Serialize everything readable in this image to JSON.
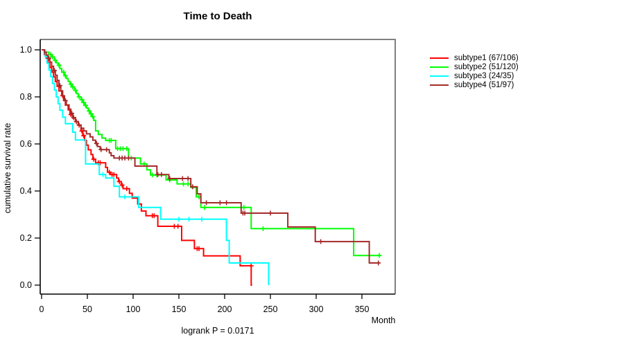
{
  "chart_data": {
    "type": "line",
    "subtype": "kaplan-meier-step",
    "title": "Time to Death",
    "xlabel": "Month",
    "ylabel": "cumulative survival rate",
    "annotation": "logrank P = 0.0171",
    "logrank_p": "0.0171",
    "xlim": [
      0,
      386
    ],
    "ylim": [
      0,
      1.0
    ],
    "grid": false,
    "legend_position": "right-outside",
    "frame_color": "#808080",
    "axis_color": "#000000",
    "x_ticks": [
      0,
      50,
      100,
      150,
      200,
      250,
      300,
      350
    ],
    "y_ticks": [
      {
        "value": 0.0,
        "label": "0.0"
      },
      {
        "value": 0.2,
        "label": "0.2"
      },
      {
        "value": 0.4,
        "label": "0.4"
      },
      {
        "value": 0.6,
        "label": "0.6"
      },
      {
        "value": 0.8,
        "label": "0.8"
      },
      {
        "value": 1.0,
        "label": "1.0"
      }
    ],
    "series": [
      {
        "name": "subtype1",
        "legend_label": "subtype1 (67/106)",
        "events": 67,
        "n": 106,
        "color": "#FF0000",
        "points": [
          [
            0,
            1.0
          ],
          [
            3,
            0.98
          ],
          [
            5,
            0.965
          ],
          [
            7,
            0.945
          ],
          [
            9,
            0.925
          ],
          [
            11,
            0.905
          ],
          [
            13,
            0.885
          ],
          [
            15,
            0.865
          ],
          [
            17,
            0.845
          ],
          [
            19,
            0.825
          ],
          [
            22,
            0.805
          ],
          [
            24,
            0.785
          ],
          [
            26,
            0.765
          ],
          [
            29,
            0.745
          ],
          [
            31,
            0.725
          ],
          [
            34,
            0.71
          ],
          [
            37,
            0.695
          ],
          [
            40,
            0.68
          ],
          [
            43,
            0.655
          ],
          [
            45,
            0.635
          ],
          [
            47,
            0.615
          ],
          [
            49,
            0.595
          ],
          [
            51,
            0.575
          ],
          [
            54,
            0.555
          ],
          [
            56,
            0.535
          ],
          [
            59,
            0.52
          ],
          [
            70,
            0.5
          ],
          [
            72,
            0.48
          ],
          [
            75,
            0.47
          ],
          [
            82,
            0.455
          ],
          [
            84,
            0.44
          ],
          [
            87,
            0.425
          ],
          [
            89,
            0.41
          ],
          [
            96,
            0.39
          ],
          [
            99,
            0.37
          ],
          [
            105,
            0.345
          ],
          [
            109,
            0.315
          ],
          [
            114,
            0.295
          ],
          [
            127,
            0.25
          ],
          [
            153,
            0.19
          ],
          [
            167,
            0.155
          ],
          [
            177,
            0.124
          ],
          [
            217,
            0.082
          ],
          [
            229,
            0.0
          ],
          [
            230,
            0.0
          ]
        ],
        "censors": [
          [
            23,
            0.805
          ],
          [
            32,
            0.725
          ],
          [
            41,
            0.68
          ],
          [
            44,
            0.655
          ],
          [
            46,
            0.635
          ],
          [
            57,
            0.535
          ],
          [
            62,
            0.52
          ],
          [
            64,
            0.52
          ],
          [
            74,
            0.48
          ],
          [
            77,
            0.47
          ],
          [
            79,
            0.47
          ],
          [
            85,
            0.44
          ],
          [
            88,
            0.425
          ],
          [
            93,
            0.41
          ],
          [
            121,
            0.295
          ],
          [
            123,
            0.295
          ],
          [
            145,
            0.25
          ],
          [
            149,
            0.25
          ],
          [
            170,
            0.155
          ],
          [
            172,
            0.155
          ],
          [
            229,
            0.082
          ]
        ]
      },
      {
        "name": "subtype2",
        "legend_label": "subtype2 (51/120)",
        "events": 51,
        "n": 120,
        "color": "#00FF00",
        "points": [
          [
            0,
            1.0
          ],
          [
            4,
            0.99
          ],
          [
            8,
            0.98
          ],
          [
            11,
            0.97
          ],
          [
            14,
            0.955
          ],
          [
            16,
            0.945
          ],
          [
            18,
            0.935
          ],
          [
            20,
            0.92
          ],
          [
            22,
            0.905
          ],
          [
            25,
            0.89
          ],
          [
            27,
            0.878
          ],
          [
            29,
            0.866
          ],
          [
            31,
            0.854
          ],
          [
            33,
            0.842
          ],
          [
            36,
            0.828
          ],
          [
            38,
            0.814
          ],
          [
            40,
            0.8
          ],
          [
            43,
            0.788
          ],
          [
            45,
            0.776
          ],
          [
            47,
            0.764
          ],
          [
            49,
            0.752
          ],
          [
            51,
            0.74
          ],
          [
            53,
            0.728
          ],
          [
            55,
            0.716
          ],
          [
            57,
            0.7
          ],
          [
            59,
            0.655
          ],
          [
            62,
            0.64
          ],
          [
            66,
            0.625
          ],
          [
            70,
            0.615
          ],
          [
            81,
            0.58
          ],
          [
            95,
            0.54
          ],
          [
            108,
            0.515
          ],
          [
            115,
            0.49
          ],
          [
            119,
            0.468
          ],
          [
            136,
            0.447
          ],
          [
            148,
            0.43
          ],
          [
            163,
            0.415
          ],
          [
            169,
            0.375
          ],
          [
            174,
            0.33
          ],
          [
            229,
            0.24
          ],
          [
            341,
            0.126
          ],
          [
            371,
            0.126
          ]
        ],
        "censors": [
          [
            10,
            0.98
          ],
          [
            12,
            0.97
          ],
          [
            15,
            0.955
          ],
          [
            19,
            0.935
          ],
          [
            24,
            0.905
          ],
          [
            26,
            0.89
          ],
          [
            32,
            0.854
          ],
          [
            34,
            0.842
          ],
          [
            37,
            0.828
          ],
          [
            41,
            0.8
          ],
          [
            44,
            0.788
          ],
          [
            46,
            0.776
          ],
          [
            48,
            0.764
          ],
          [
            52,
            0.74
          ],
          [
            54,
            0.728
          ],
          [
            56,
            0.716
          ],
          [
            74,
            0.615
          ],
          [
            76,
            0.615
          ],
          [
            83,
            0.58
          ],
          [
            86,
            0.58
          ],
          [
            89,
            0.58
          ],
          [
            93,
            0.58
          ],
          [
            98,
            0.54
          ],
          [
            112,
            0.515
          ],
          [
            121,
            0.468
          ],
          [
            126,
            0.468
          ],
          [
            140,
            0.447
          ],
          [
            155,
            0.43
          ],
          [
            160,
            0.43
          ],
          [
            172,
            0.375
          ],
          [
            178,
            0.33
          ],
          [
            218,
            0.33
          ],
          [
            221,
            0.33
          ],
          [
            242,
            0.24
          ],
          [
            369,
            0.126
          ]
        ]
      },
      {
        "name": "subtype3",
        "legend_label": "subtype3 (24/35)",
        "events": 24,
        "n": 35,
        "color": "#00FFFF",
        "points": [
          [
            0,
            1.0
          ],
          [
            4,
            0.971
          ],
          [
            6,
            0.943
          ],
          [
            8,
            0.914
          ],
          [
            10,
            0.886
          ],
          [
            12,
            0.857
          ],
          [
            14,
            0.829
          ],
          [
            16,
            0.8
          ],
          [
            18,
            0.771
          ],
          [
            20,
            0.743
          ],
          [
            23,
            0.714
          ],
          [
            26,
            0.686
          ],
          [
            34,
            0.65
          ],
          [
            37,
            0.617
          ],
          [
            48,
            0.515
          ],
          [
            63,
            0.47
          ],
          [
            70,
            0.455
          ],
          [
            79,
            0.42
          ],
          [
            85,
            0.375
          ],
          [
            106,
            0.33
          ],
          [
            130,
            0.28
          ],
          [
            202,
            0.19
          ],
          [
            205,
            0.094
          ],
          [
            248,
            0.0
          ]
        ],
        "censors": [
          [
            67,
            0.47
          ],
          [
            91,
            0.375
          ],
          [
            150,
            0.28
          ],
          [
            161,
            0.28
          ],
          [
            175,
            0.28
          ]
        ]
      },
      {
        "name": "subtype4",
        "legend_label": "subtype4 (51/97)",
        "events": 51,
        "n": 97,
        "color": "#A52A2A",
        "points": [
          [
            0,
            1.0
          ],
          [
            3,
            0.99
          ],
          [
            5,
            0.978
          ],
          [
            7,
            0.964
          ],
          [
            9,
            0.948
          ],
          [
            11,
            0.93
          ],
          [
            13,
            0.912
          ],
          [
            15,
            0.892
          ],
          [
            17,
            0.87
          ],
          [
            19,
            0.848
          ],
          [
            21,
            0.826
          ],
          [
            23,
            0.804
          ],
          [
            25,
            0.784
          ],
          [
            27,
            0.766
          ],
          [
            30,
            0.748
          ],
          [
            32,
            0.73
          ],
          [
            34,
            0.712
          ],
          [
            37,
            0.695
          ],
          [
            40,
            0.68
          ],
          [
            43,
            0.667
          ],
          [
            46,
            0.655
          ],
          [
            49,
            0.643
          ],
          [
            53,
            0.63
          ],
          [
            56,
            0.616
          ],
          [
            59,
            0.602
          ],
          [
            61,
            0.589
          ],
          [
            64,
            0.576
          ],
          [
            74,
            0.562
          ],
          [
            76,
            0.55
          ],
          [
            79,
            0.54
          ],
          [
            102,
            0.506
          ],
          [
            126,
            0.47
          ],
          [
            139,
            0.453
          ],
          [
            163,
            0.418
          ],
          [
            170,
            0.388
          ],
          [
            174,
            0.35
          ],
          [
            218,
            0.306
          ],
          [
            269,
            0.247
          ],
          [
            299,
            0.185
          ],
          [
            358,
            0.094
          ],
          [
            369,
            0.094
          ]
        ],
        "censors": [
          [
            8,
            0.964
          ],
          [
            14,
            0.912
          ],
          [
            20,
            0.848
          ],
          [
            26,
            0.784
          ],
          [
            33,
            0.73
          ],
          [
            35,
            0.712
          ],
          [
            38,
            0.695
          ],
          [
            60,
            0.602
          ],
          [
            65,
            0.576
          ],
          [
            71,
            0.576
          ],
          [
            85,
            0.54
          ],
          [
            88,
            0.54
          ],
          [
            91,
            0.54
          ],
          [
            95,
            0.54
          ],
          [
            127,
            0.47
          ],
          [
            131,
            0.47
          ],
          [
            140,
            0.453
          ],
          [
            154,
            0.453
          ],
          [
            160,
            0.453
          ],
          [
            165,
            0.418
          ],
          [
            180,
            0.35
          ],
          [
            195,
            0.35
          ],
          [
            202,
            0.35
          ],
          [
            220,
            0.306
          ],
          [
            222,
            0.306
          ],
          [
            250,
            0.306
          ],
          [
            305,
            0.185
          ],
          [
            368,
            0.094
          ]
        ]
      }
    ]
  }
}
